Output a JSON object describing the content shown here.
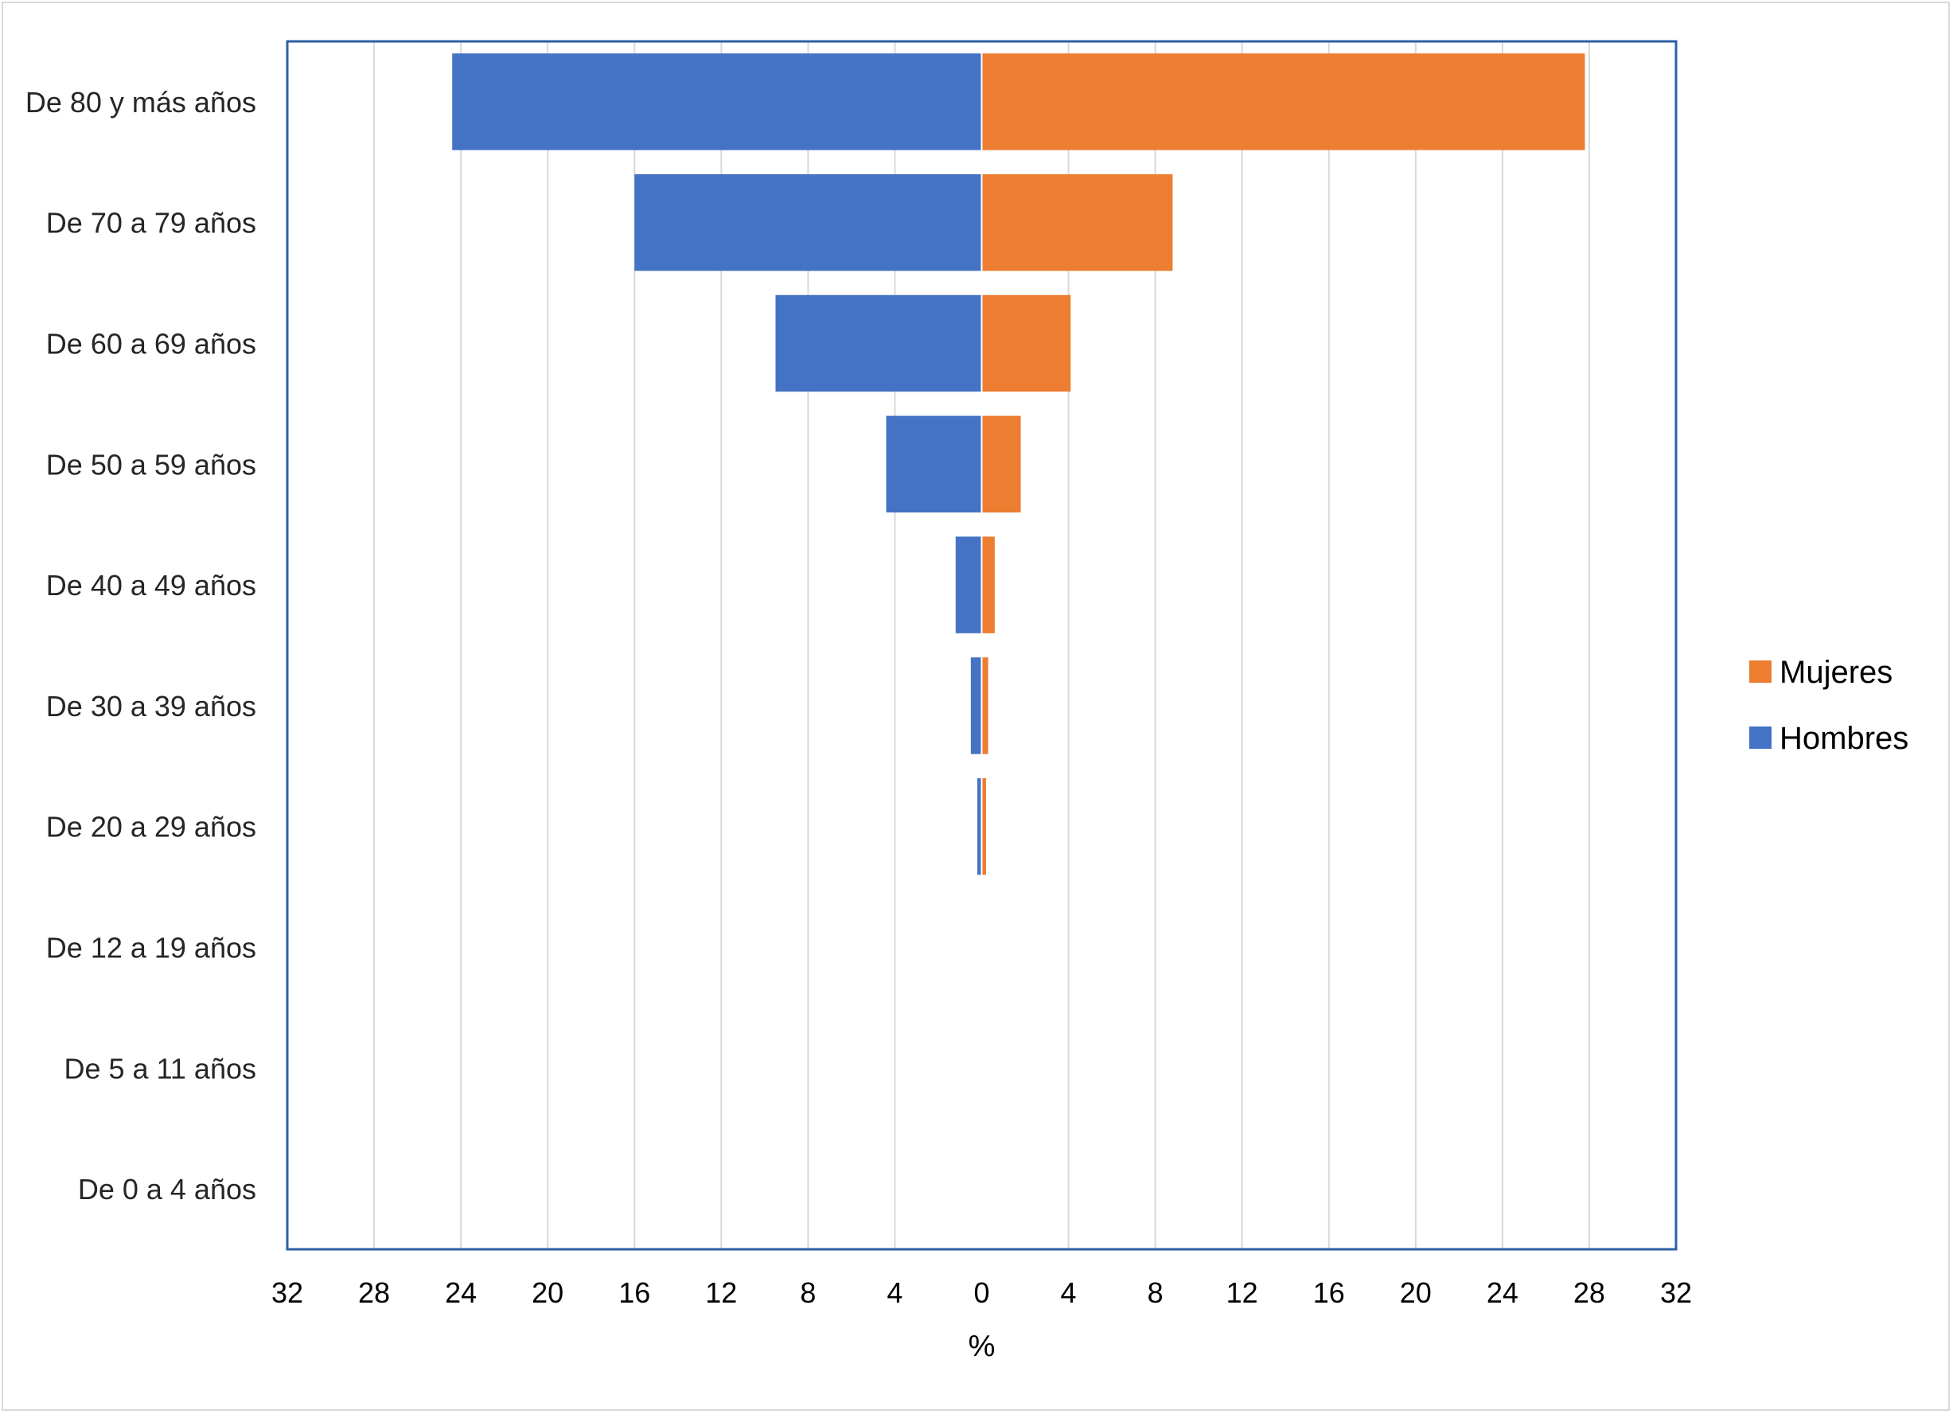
{
  "chart_data": {
    "type": "bar",
    "orientation": "horizontal",
    "layout": "population-pyramid",
    "categories": [
      "De 80 y más años",
      "De 70 a 79 años",
      "De 60 a 69 años",
      "De 50 a 59 años",
      "De 40 a 49 años",
      "De 30 a 39 años",
      "De 20 a 29 años",
      "De 12 a 19 años",
      "De 5 a 11 años",
      "De 0 a 4 años"
    ],
    "series": [
      {
        "name": "Hombres",
        "color": "#4472C4",
        "side": "left",
        "values": [
          24.4,
          16.0,
          9.5,
          4.4,
          1.2,
          0.5,
          0.2,
          0,
          0,
          0
        ]
      },
      {
        "name": "Mujeres",
        "color": "#ED7D31",
        "side": "right",
        "values": [
          27.8,
          8.8,
          4.1,
          1.8,
          0.6,
          0.3,
          0.2,
          0,
          0,
          0
        ]
      }
    ],
    "xlabel": "%",
    "xlim": [
      -32,
      32
    ],
    "xticks": [
      "32",
      "28",
      "24",
      "20",
      "16",
      "12",
      "8",
      "4",
      "0",
      "4",
      "8",
      "12",
      "16",
      "20",
      "24",
      "28",
      "32"
    ],
    "grid": "vertical",
    "legend": {
      "position": "right",
      "entries": [
        "Mujeres",
        "Hombres"
      ]
    },
    "plot_border_color": "#2E5FA6"
  }
}
